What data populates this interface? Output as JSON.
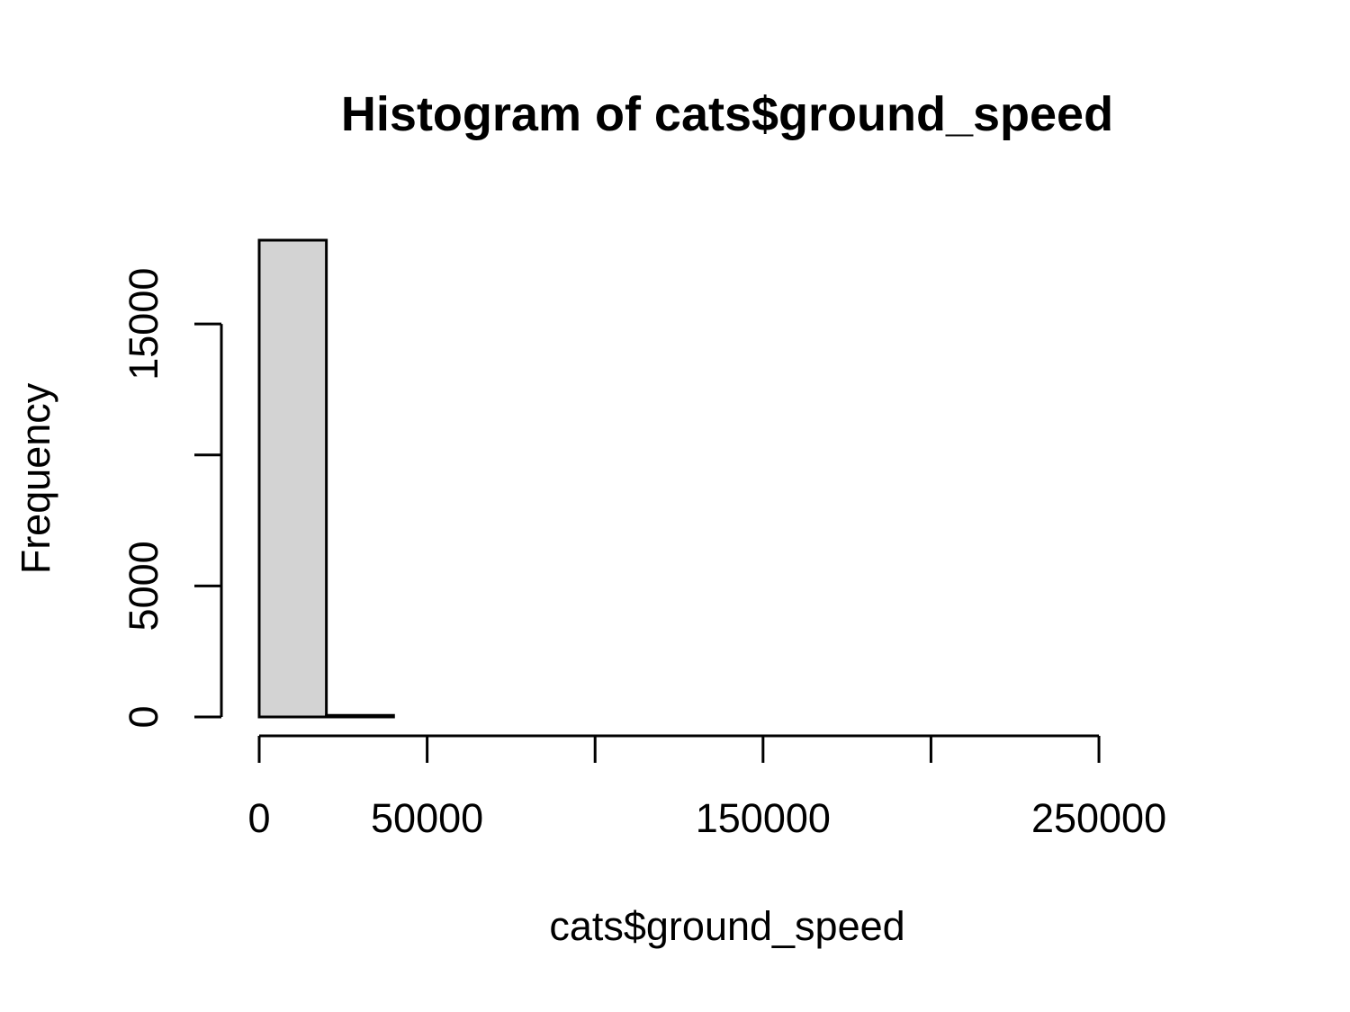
{
  "chart_data": {
    "type": "bar",
    "title": "Histogram of cats$ground_speed",
    "xlabel": "cats$ground_speed",
    "ylabel": "Frequency",
    "bar_color": "#d3d3d3",
    "border_color": "#000000",
    "bins": [
      {
        "start": 0,
        "end": 20000,
        "count": 18200
      },
      {
        "start": 20000,
        "end": 40000,
        "count": 60
      },
      {
        "start": 40000,
        "end": 60000,
        "count": 0
      },
      {
        "start": 60000,
        "end": 80000,
        "count": 0
      },
      {
        "start": 80000,
        "end": 100000,
        "count": 0
      },
      {
        "start": 100000,
        "end": 120000,
        "count": 0
      },
      {
        "start": 120000,
        "end": 140000,
        "count": 0
      },
      {
        "start": 140000,
        "end": 160000,
        "count": 0
      },
      {
        "start": 160000,
        "end": 180000,
        "count": 0
      },
      {
        "start": 180000,
        "end": 200000,
        "count": 0
      },
      {
        "start": 200000,
        "end": 220000,
        "count": 0
      },
      {
        "start": 220000,
        "end": 240000,
        "count": 0
      },
      {
        "start": 240000,
        "end": 260000,
        "count": 0
      },
      {
        "start": 260000,
        "end": 280000,
        "count": 0
      }
    ],
    "xlim": [
      0,
      280000
    ],
    "ylim": [
      0,
      18200
    ],
    "x_ticks": [
      0,
      50000,
      100000,
      150000,
      200000,
      250000
    ],
    "x_tick_labels": [
      "0",
      "50000",
      "",
      "150000",
      "",
      "250000"
    ],
    "y_ticks": [
      0,
      5000,
      10000,
      15000
    ],
    "y_tick_labels": [
      "0",
      "5000",
      "",
      "15000"
    ],
    "grid": false
  }
}
